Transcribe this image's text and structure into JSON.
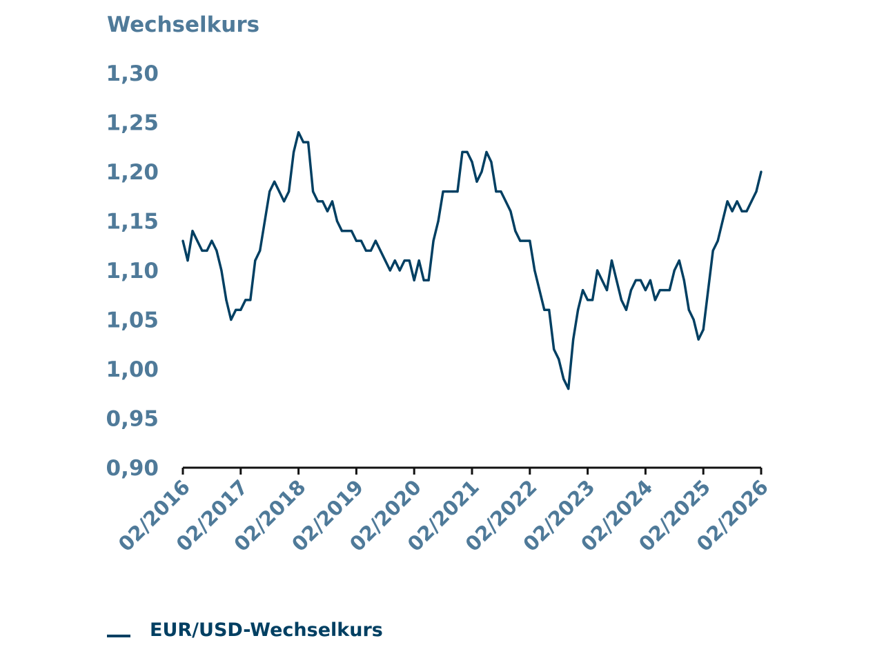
{
  "chart_data": {
    "type": "line",
    "ylabel": "Wechselkurs",
    "ylim": [
      0.9,
      1.3
    ],
    "yticks": [
      "0,90",
      "0,95",
      "1,00",
      "1,05",
      "1,10",
      "1,15",
      "1,20",
      "1,25",
      "1,30"
    ],
    "ytick_values": [
      0.9,
      0.95,
      1.0,
      1.05,
      1.1,
      1.15,
      1.2,
      1.25,
      1.3
    ],
    "xlim": [
      "2016-02",
      "2026-02"
    ],
    "xticks": [
      "02/2016",
      "02/2017",
      "02/2018",
      "02/2019",
      "02/2020",
      "02/2021",
      "02/2022",
      "02/2023",
      "02/2024",
      "02/2025",
      "02/2026"
    ],
    "grid": false,
    "legend_placement": "bottom-left",
    "series": [
      {
        "name": "EUR/USD-Wechselkurs",
        "color": "#003f62",
        "x": [
          "2016-02",
          "2016-03",
          "2016-04",
          "2016-05",
          "2016-06",
          "2016-07",
          "2016-08",
          "2016-09",
          "2016-10",
          "2016-11",
          "2016-12",
          "2017-01",
          "2017-02",
          "2017-03",
          "2017-04",
          "2017-05",
          "2017-06",
          "2017-07",
          "2017-08",
          "2017-09",
          "2017-10",
          "2017-11",
          "2017-12",
          "2018-01",
          "2018-02",
          "2018-03",
          "2018-04",
          "2018-05",
          "2018-06",
          "2018-07",
          "2018-08",
          "2018-09",
          "2018-10",
          "2018-11",
          "2018-12",
          "2019-01",
          "2019-02",
          "2019-03",
          "2019-04",
          "2019-05",
          "2019-06",
          "2019-07",
          "2019-08",
          "2019-09",
          "2019-10",
          "2019-11",
          "2019-12",
          "2020-01",
          "2020-02",
          "2020-03",
          "2020-04",
          "2020-05",
          "2020-06",
          "2020-07",
          "2020-08",
          "2020-09",
          "2020-10",
          "2020-11",
          "2020-12",
          "2021-01",
          "2021-02",
          "2021-03",
          "2021-04",
          "2021-05",
          "2021-06",
          "2021-07",
          "2021-08",
          "2021-09",
          "2021-10",
          "2021-11",
          "2021-12",
          "2022-01",
          "2022-02",
          "2022-03",
          "2022-04",
          "2022-05",
          "2022-06",
          "2022-07",
          "2022-08",
          "2022-09",
          "2022-10",
          "2022-11",
          "2022-12",
          "2023-01",
          "2023-02",
          "2023-03",
          "2023-04",
          "2023-05",
          "2023-06",
          "2023-07",
          "2023-08",
          "2023-09",
          "2023-10",
          "2023-11",
          "2023-12",
          "2024-01",
          "2024-02",
          "2024-03",
          "2024-04",
          "2024-05",
          "2024-06",
          "2024-07",
          "2024-08",
          "2024-09",
          "2024-10",
          "2024-11",
          "2024-12",
          "2025-01",
          "2025-02",
          "2025-03",
          "2025-04",
          "2025-05",
          "2025-06",
          "2025-07",
          "2025-08",
          "2025-09",
          "2025-10",
          "2025-11",
          "2025-12",
          "2026-01",
          "2026-02"
        ],
        "values": [
          1.13,
          1.11,
          1.14,
          1.13,
          1.12,
          1.12,
          1.13,
          1.12,
          1.1,
          1.07,
          1.05,
          1.06,
          1.06,
          1.07,
          1.07,
          1.11,
          1.12,
          1.15,
          1.18,
          1.19,
          1.18,
          1.17,
          1.18,
          1.22,
          1.24,
          1.23,
          1.23,
          1.18,
          1.17,
          1.17,
          1.16,
          1.17,
          1.15,
          1.14,
          1.14,
          1.14,
          1.13,
          1.13,
          1.12,
          1.12,
          1.13,
          1.12,
          1.11,
          1.1,
          1.11,
          1.1,
          1.11,
          1.11,
          1.09,
          1.11,
          1.09,
          1.09,
          1.13,
          1.15,
          1.18,
          1.18,
          1.18,
          1.18,
          1.22,
          1.22,
          1.21,
          1.19,
          1.2,
          1.22,
          1.21,
          1.18,
          1.18,
          1.17,
          1.16,
          1.14,
          1.13,
          1.13,
          1.13,
          1.1,
          1.08,
          1.06,
          1.06,
          1.02,
          1.01,
          0.99,
          0.98,
          1.03,
          1.06,
          1.08,
          1.07,
          1.07,
          1.1,
          1.09,
          1.08,
          1.11,
          1.09,
          1.07,
          1.06,
          1.08,
          1.09,
          1.09,
          1.08,
          1.09,
          1.07,
          1.08,
          1.08,
          1.08,
          1.1,
          1.11,
          1.09,
          1.06,
          1.05,
          1.03,
          1.04,
          1.08,
          1.12,
          1.13,
          1.15,
          1.17,
          1.16,
          1.17,
          1.16,
          1.16,
          1.17,
          1.18,
          1.2
        ]
      }
    ]
  }
}
